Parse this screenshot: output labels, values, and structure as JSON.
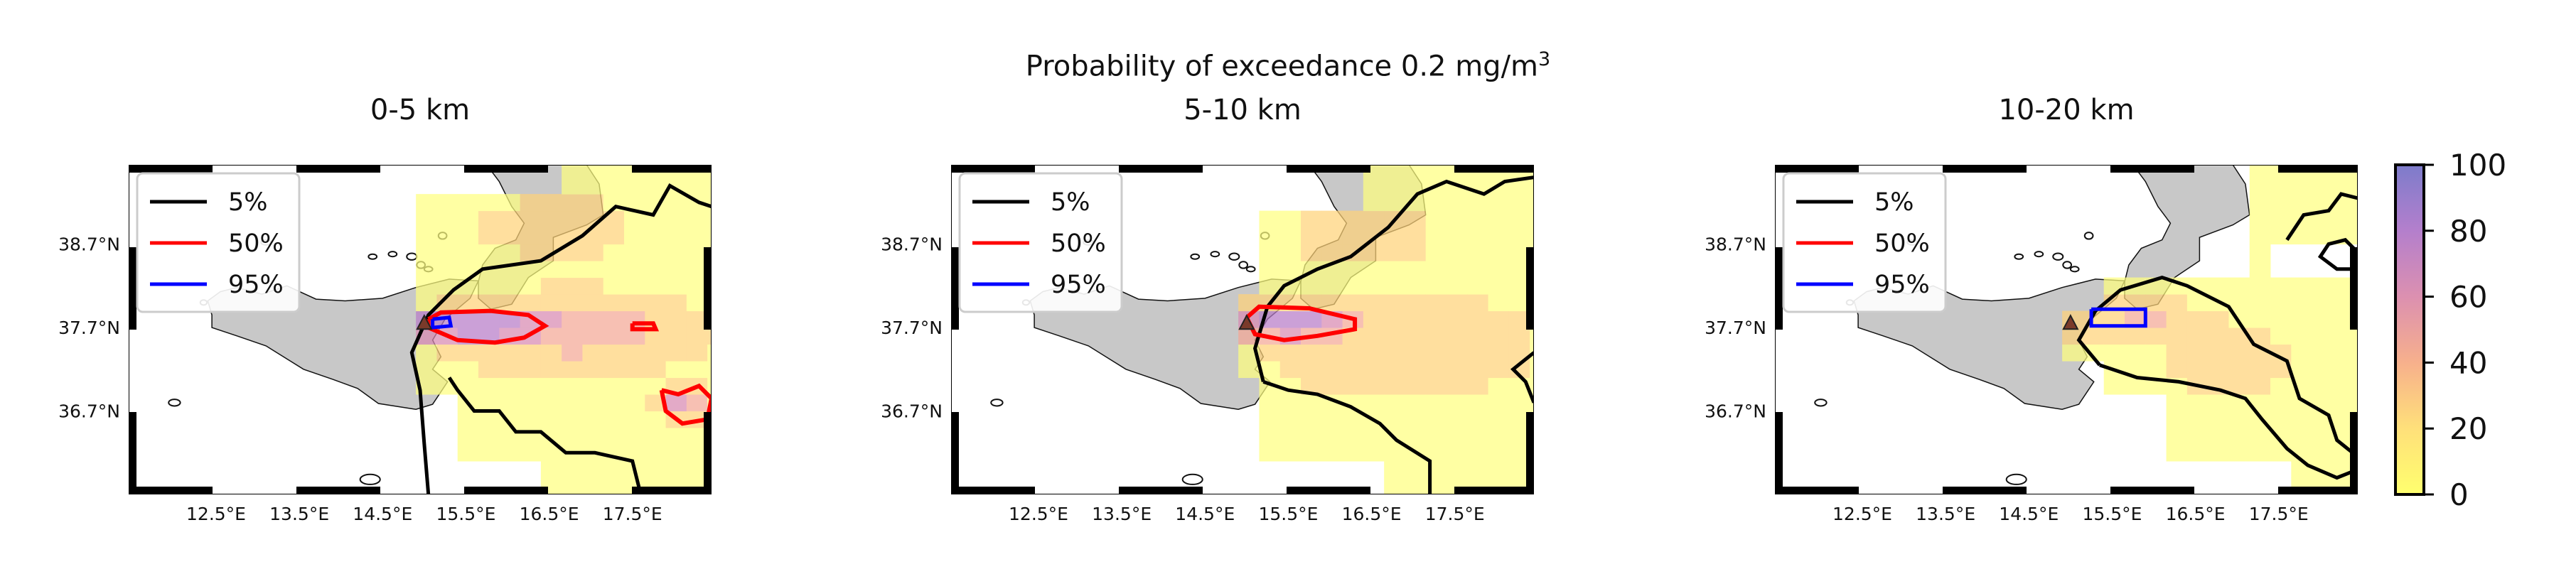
{
  "figure": {
    "title_line1": "Probability of exceedance 0.2 mg/m",
    "title_sup": "3"
  },
  "panels": [
    {
      "title": "0-5 km"
    },
    {
      "title": "5-10 km"
    },
    {
      "title": "10-20 km"
    }
  ],
  "axes": {
    "lon_ticks": [
      "12.5°E",
      "13.5°E",
      "14.5°E",
      "15.5°E",
      "16.5°E",
      "17.5°E"
    ],
    "lat_ticks": [
      "38.7°N",
      "37.7°N",
      "36.7°N"
    ]
  },
  "legend": [
    {
      "label": "5%",
      "color": "#000000"
    },
    {
      "label": "50%",
      "color": "#ff0000"
    },
    {
      "label": "95%",
      "color": "#0000ff"
    }
  ],
  "colorbar": {
    "ticks": [
      "100",
      "80",
      "60",
      "40",
      "20",
      "0"
    ],
    "range": [
      0,
      100
    ],
    "colors": [
      "#ffff80",
      "#ffd37a",
      "#f5a896",
      "#d98ab2",
      "#b87cc9",
      "#8a78c8"
    ]
  },
  "chart_data": {
    "type": "heatmap",
    "title": "Probability of exceedance 0.2 mg/m3",
    "x_axis": "longitude",
    "y_axis": "latitude",
    "value_range": [
      0,
      100
    ],
    "contour_levels": [
      5,
      50,
      95
    ],
    "panels": [
      "0-5 km",
      "5-10 km",
      "10-20 km"
    ]
  }
}
